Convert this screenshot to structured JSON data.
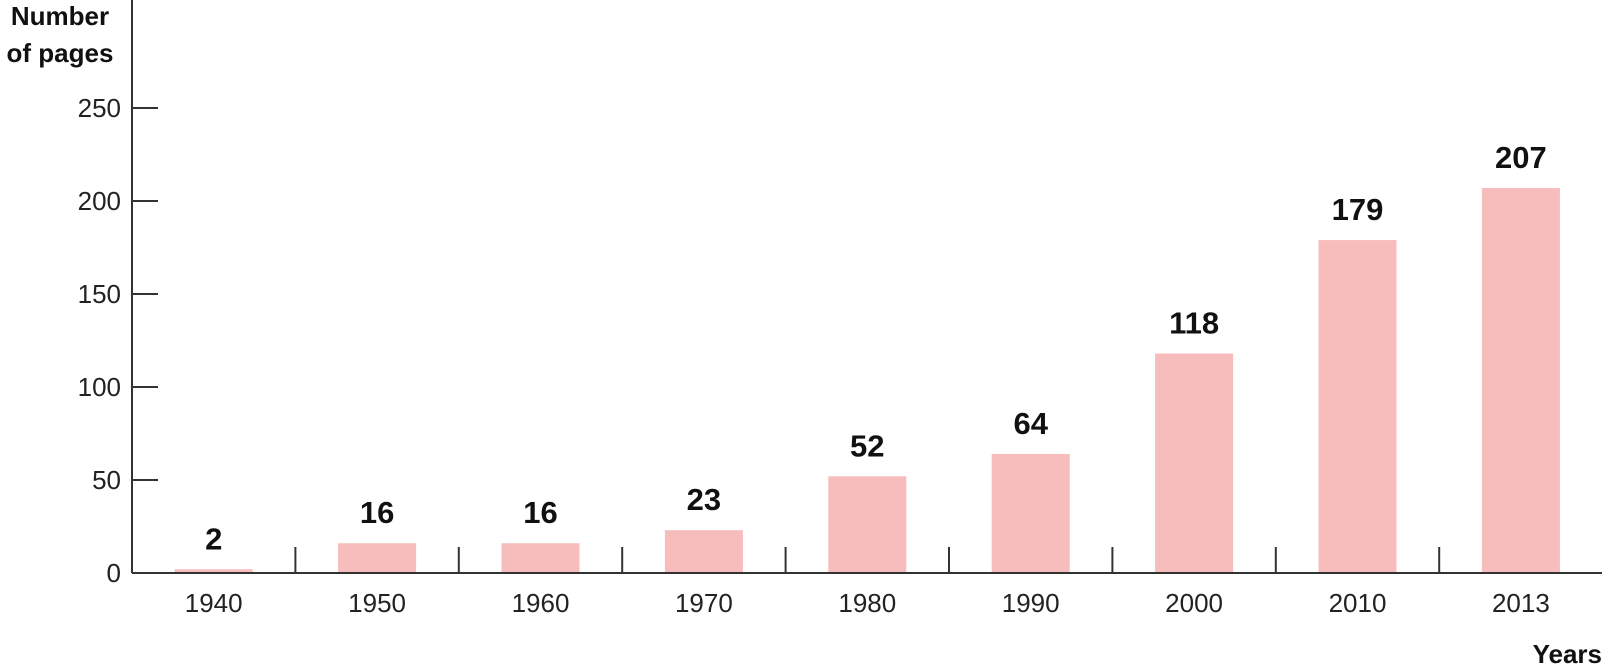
{
  "chart_data": {
    "type": "bar",
    "ylabel_lines": [
      "Number",
      "of pages"
    ],
    "xlabel": "Years",
    "categories": [
      "1940",
      "1950",
      "1960",
      "1970",
      "1980",
      "1990",
      "2000",
      "2010",
      "2013"
    ],
    "values": [
      2,
      16,
      16,
      23,
      52,
      64,
      118,
      179,
      207
    ],
    "data_labels": [
      "2",
      "16",
      "16",
      "23",
      "52",
      "64",
      "118",
      "179",
      "207"
    ],
    "y_ticks": [
      "0",
      "50",
      "100",
      "150",
      "200",
      "250"
    ],
    "ylim": [
      0,
      250
    ],
    "bar_color": "#f7bcbc",
    "grid": false,
    "legend": "none"
  }
}
